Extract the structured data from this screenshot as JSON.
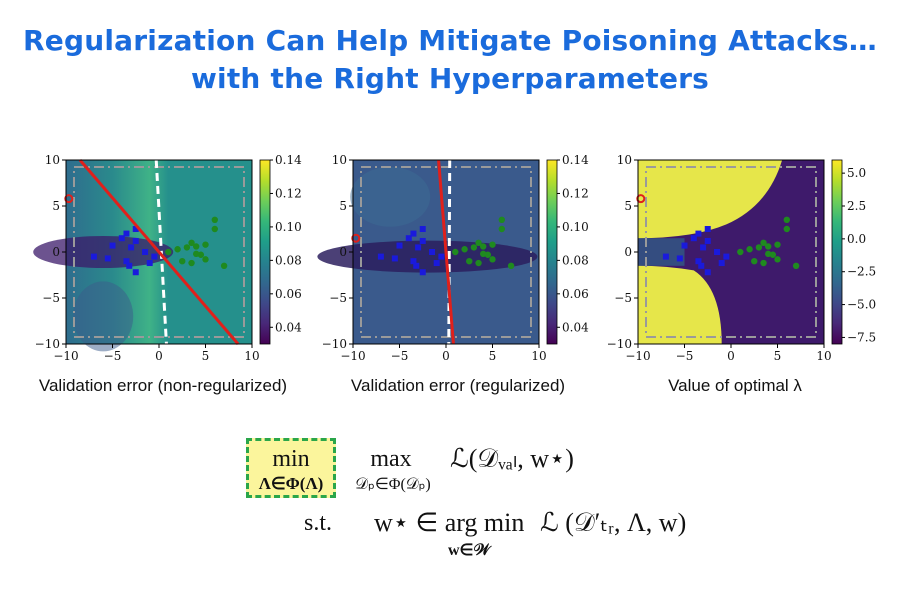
{
  "title": {
    "line1": "Regularization Can Help Mitigate Poisoning Attacks…",
    "line2": "with the Right Hyperparameters"
  },
  "colors": {
    "title": "#1a6bdc",
    "highlight_fill": "#fbf59c",
    "highlight_border": "#2aa64a",
    "boundary_line": "#e0201b",
    "blue_points": "#1a1adc",
    "green_points": "#1f8a1f",
    "poison_point": "#e0201b"
  },
  "chart_data": [
    {
      "type": "heatmap",
      "caption": "Validation error (non-regularized)",
      "xlim": [
        -10,
        10
      ],
      "ylim": [
        -10,
        10
      ],
      "xticks": [
        "−10",
        "−5",
        "0",
        "5",
        "10"
      ],
      "yticks": [
        "10",
        "5",
        "0",
        "−5",
        "−10"
      ],
      "colorbar": {
        "min": 0.03,
        "max": 0.14,
        "ticks": [
          "0.14",
          "0.12",
          "0.10",
          "0.08",
          "0.06",
          "0.04"
        ],
        "values": [
          0.14,
          0.12,
          0.1,
          0.08,
          0.06,
          0.04
        ]
      },
      "decision_boundary": [
        [
          -8.5,
          10
        ],
        [
          8.5,
          -10
        ]
      ],
      "clean_boundary": [
        [
          -0.3,
          10
        ],
        [
          0.8,
          -10
        ]
      ],
      "poison_point": [
        -9.7,
        5.8
      ]
    },
    {
      "type": "heatmap",
      "caption": "Validation error (regularized)",
      "xlim": [
        -10,
        10
      ],
      "ylim": [
        -10,
        10
      ],
      "xticks": [
        "−10",
        "−5",
        "0",
        "5",
        "10"
      ],
      "yticks": [
        "10",
        "5",
        "0",
        "−5",
        "−10"
      ],
      "colorbar": {
        "min": 0.03,
        "max": 0.14,
        "ticks": [
          "0.14",
          "0.12",
          "0.10",
          "0.08",
          "0.06",
          "0.04"
        ],
        "values": [
          0.14,
          0.12,
          0.1,
          0.08,
          0.06,
          0.04
        ]
      },
      "decision_boundary": [
        [
          -0.8,
          10
        ],
        [
          0.8,
          -10
        ]
      ],
      "clean_boundary": [
        [
          0.4,
          10
        ],
        [
          0.3,
          -10
        ]
      ],
      "poison_point": [
        -9.7,
        1.5
      ]
    },
    {
      "type": "heatmap",
      "caption": "Value of optimal λ",
      "xlim": [
        -10,
        10
      ],
      "ylim": [
        -10,
        10
      ],
      "xticks": [
        "−10",
        "−5",
        "0",
        "5",
        "10"
      ],
      "yticks": [
        "10",
        "5",
        "0",
        "−5",
        "−10"
      ],
      "colorbar": {
        "min": -8.0,
        "max": 6.0,
        "ticks": [
          "5.0",
          "2.5",
          "0.0",
          "−2.5",
          "−5.0",
          "−7.5"
        ],
        "values": [
          5.0,
          2.5,
          0.0,
          -2.5,
          -5.0,
          -7.5
        ]
      },
      "poison_point": [
        -9.7,
        5.8
      ]
    }
  ],
  "points": {
    "blue": [
      [
        -4,
        1.5
      ],
      [
        -3.5,
        2
      ],
      [
        -2.5,
        2.5
      ],
      [
        -5,
        0.7
      ],
      [
        -3,
        0.5
      ],
      [
        -2.5,
        1.2
      ],
      [
        -1.5,
        0
      ],
      [
        -7,
        -0.5
      ],
      [
        -5.5,
        -0.7
      ],
      [
        -3.5,
        -1
      ],
      [
        -1,
        -1.2
      ],
      [
        -0.5,
        -0.5
      ],
      [
        -2.5,
        -2.2
      ],
      [
        -3.2,
        -1.5
      ]
    ],
    "green": [
      [
        1,
        0
      ],
      [
        2,
        0.3
      ],
      [
        3,
        0.5
      ],
      [
        4,
        0.6
      ],
      [
        5,
        0.8
      ],
      [
        6,
        2.5
      ],
      [
        6,
        3.5
      ],
      [
        3.5,
        1
      ],
      [
        2.5,
        -1
      ],
      [
        3.5,
        -1.2
      ],
      [
        4.5,
        -0.3
      ],
      [
        7,
        -1.5
      ],
      [
        5,
        -0.8
      ],
      [
        4,
        -0.2
      ]
    ]
  },
  "formula": {
    "min": "min",
    "min_sub": "Λ∈Φ(Λ)",
    "max": "max",
    "max_sub": "𝒟ₚ∈Φ(𝒟ₚ)",
    "objective": "ℒ(𝒟ᵥₐₗ, w⋆)",
    "st": "s.t.",
    "constraint_lhs": "w⋆ ∈ arg min",
    "constraint_sub": "w∈𝒲",
    "constraint_rhs": "ℒ (𝒟′ₜᵣ, Λ, w)"
  }
}
